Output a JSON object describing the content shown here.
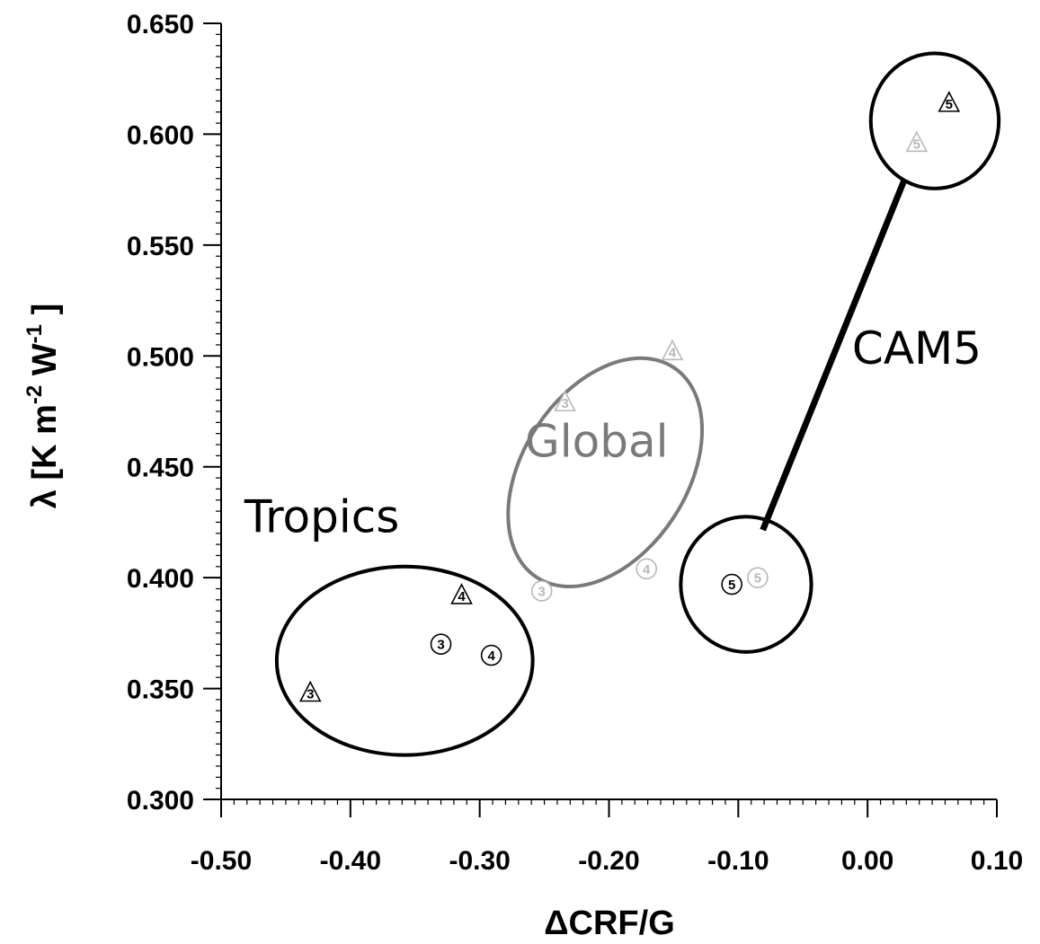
{
  "chart_data": {
    "type": "scatter",
    "xlabel": "ΔCRF/G",
    "ylabel": "λ [K m-2 W-1 ]",
    "ylabel_parts": {
      "prefix": "λ [K m",
      "sup1": "-2",
      "mid": " W",
      "sup2": "-1",
      "suffix": " ]"
    },
    "xlim": [
      -0.5,
      0.1
    ],
    "ylim": [
      0.3,
      0.65
    ],
    "xticks": [
      -0.5,
      -0.4,
      -0.3,
      -0.2,
      -0.1,
      0.0,
      0.1
    ],
    "xtick_labels": [
      "-0.50",
      "-0.40",
      "-0.30",
      "-0.20",
      "-0.10",
      "0.00",
      "0.10"
    ],
    "yticks": [
      0.3,
      0.35,
      0.4,
      0.45,
      0.5,
      0.55,
      0.6,
      0.65
    ],
    "ytick_labels": [
      "0.300",
      "0.350",
      "0.400",
      "0.450",
      "0.500",
      "0.550",
      "0.600",
      "0.650"
    ],
    "grid": false,
    "colors": {
      "tropics": "#000000",
      "global_points": "#b8b8b8",
      "global_ellipse": "#7a7a7a",
      "cam5": "#000000"
    },
    "points": [
      {
        "group": "tropics",
        "marker": "triangle",
        "label": "3",
        "x": -0.431,
        "y": 0.348
      },
      {
        "group": "tropics",
        "marker": "triangle",
        "label": "4",
        "x": -0.314,
        "y": 0.392
      },
      {
        "group": "tropics",
        "marker": "circle",
        "label": "3",
        "x": -0.33,
        "y": 0.37
      },
      {
        "group": "tropics",
        "marker": "circle",
        "label": "4",
        "x": -0.291,
        "y": 0.365
      },
      {
        "group": "global",
        "marker": "triangle",
        "label": "3",
        "x": -0.234,
        "y": 0.479
      },
      {
        "group": "global",
        "marker": "triangle",
        "label": "4",
        "x": -0.151,
        "y": 0.502
      },
      {
        "group": "global",
        "marker": "circle",
        "label": "3",
        "x": -0.252,
        "y": 0.394
      },
      {
        "group": "global",
        "marker": "circle",
        "label": "4",
        "x": -0.171,
        "y": 0.404
      },
      {
        "group": "cam5",
        "marker": "circle",
        "label": "5",
        "x": -0.105,
        "y": 0.397
      },
      {
        "group": "global",
        "marker": "circle",
        "label": "5",
        "x": -0.085,
        "y": 0.4
      },
      {
        "group": "cam5",
        "marker": "triangle",
        "label": "5",
        "x": 0.063,
        "y": 0.614
      },
      {
        "group": "global",
        "marker": "triangle",
        "label": "5",
        "x": 0.038,
        "y": 0.596
      }
    ],
    "annotations": {
      "tropics": {
        "text": "Tropics",
        "x": -0.482,
        "y": 0.4205
      },
      "global": {
        "text": "Global",
        "x": -0.265,
        "y": 0.4545
      },
      "cam5": {
        "text": "CAM5",
        "x": -0.012,
        "y": 0.4965
      }
    },
    "regions": [
      {
        "name": "tropics",
        "cx": -0.358,
        "cy": 0.3625,
        "rx": 0.099,
        "ry": 0.0425,
        "rotate": 0
      },
      {
        "name": "global",
        "cx": -0.203,
        "cy": 0.4475,
        "rx": 0.0635,
        "ry": 0.0565,
        "rotate": 33
      },
      {
        "name": "cam5-low",
        "cx": -0.094,
        "cy": 0.397,
        "rx": 0.0505,
        "ry": 0.0305,
        "rotate": 0
      },
      {
        "name": "cam5-high",
        "cx": 0.052,
        "cy": 0.606,
        "rx": 0.0495,
        "ry": 0.0305,
        "rotate": 0
      }
    ],
    "connector": {
      "x1": -0.081,
      "y1": 0.4215,
      "x2": 0.0285,
      "y2": 0.5795
    }
  }
}
